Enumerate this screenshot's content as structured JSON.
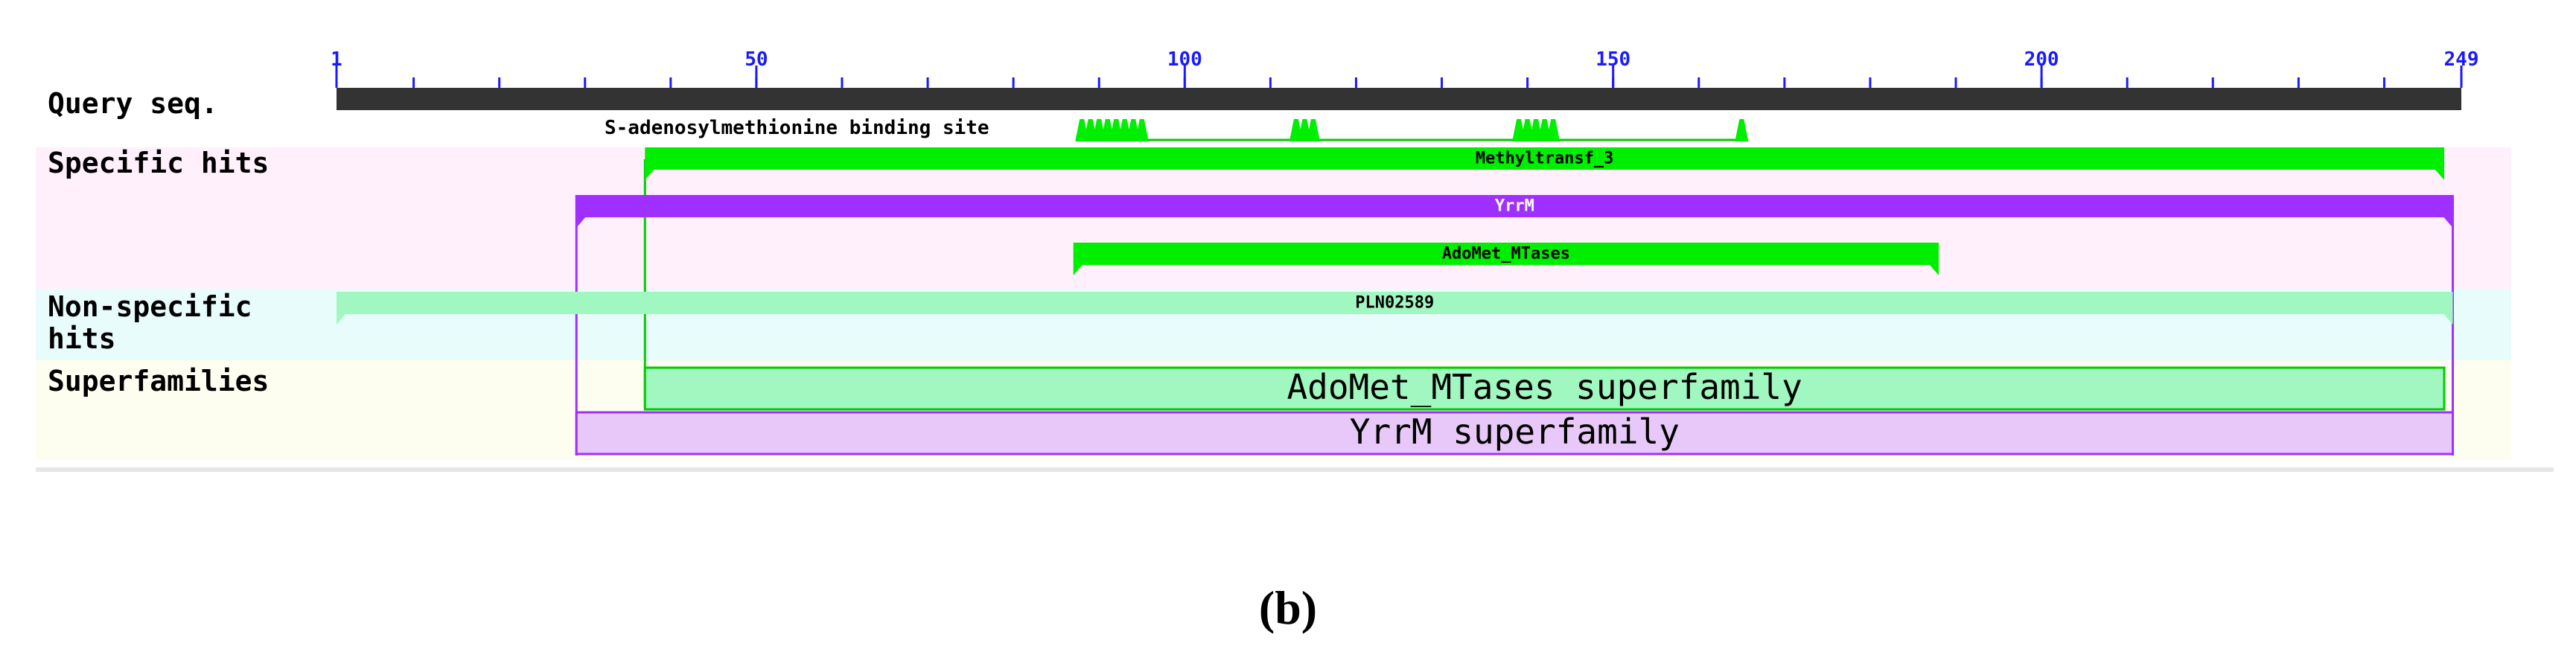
{
  "figure": {
    "caption": "(b)",
    "sequence_length": 249,
    "axis": {
      "ticks": [
        1,
        50,
        100,
        150,
        200,
        249
      ],
      "minor_step": 10
    },
    "rows": {
      "query": "Query seq.",
      "specific": "Specific hits",
      "nonspecific_line1": "Non-specific",
      "nonspecific_line2": "hits",
      "superfamilies": "Superfamilies"
    },
    "site": {
      "label": "S-adenosylmethionine binding site",
      "positions": [
        88,
        89,
        90,
        91,
        92,
        93,
        94,
        95,
        113,
        114,
        115,
        139,
        140,
        141,
        142,
        143,
        165
      ]
    },
    "specific_hits": [
      {
        "name": "Methyltransf_3",
        "start": 37,
        "end": 247,
        "color": "#00ee00"
      },
      {
        "name": "YrrM",
        "start": 29,
        "end": 248,
        "color": "#a030ff"
      },
      {
        "name": "AdoMet_MTases",
        "start": 87,
        "end": 188,
        "color": "#00ee00"
      }
    ],
    "nonspecific_hits": [
      {
        "name": "PLN02589",
        "start": 1,
        "end": 248,
        "color": "#a0f8c0"
      }
    ],
    "superfamilies": [
      {
        "name": "AdoMet_MTases superfamily",
        "start": 37,
        "end": 247,
        "color": "#a0f8c0",
        "border": "#00cc00"
      },
      {
        "name": "YrrM superfamily",
        "start": 29,
        "end": 248,
        "color": "#e8c8f8",
        "border": "#a030ff"
      }
    ],
    "colors": {
      "specific_bg": "#fff0fc",
      "nonspecific_bg": "#e8fcfc",
      "superfamily_bg": "#fdfdf0",
      "query_bar": "#333333",
      "tick_color": "#1a1aff"
    }
  }
}
